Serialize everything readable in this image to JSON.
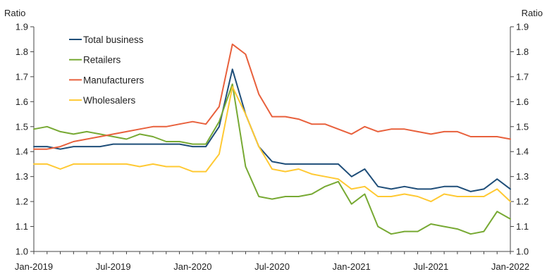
{
  "chart_data": {
    "type": "line",
    "title": "",
    "ylabel_left": "Ratio",
    "ylabel_right": "Ratio",
    "ylim": [
      1.0,
      1.9
    ],
    "yticks": [
      "1.0",
      "1.1",
      "1.2",
      "1.3",
      "1.4",
      "1.5",
      "1.6",
      "1.7",
      "1.8",
      "1.9"
    ],
    "x": [
      "2019-01",
      "2019-02",
      "2019-03",
      "2019-04",
      "2019-05",
      "2019-06",
      "2019-07",
      "2019-08",
      "2019-09",
      "2019-10",
      "2019-11",
      "2019-12",
      "2020-01",
      "2020-02",
      "2020-03",
      "2020-04",
      "2020-05",
      "2020-06",
      "2020-07",
      "2020-08",
      "2020-09",
      "2020-10",
      "2020-11",
      "2020-12",
      "2021-01",
      "2021-02",
      "2021-03",
      "2021-04",
      "2021-05",
      "2021-06",
      "2021-07",
      "2021-08",
      "2021-09",
      "2021-10",
      "2021-11",
      "2021-12",
      "2022-01"
    ],
    "xtick_labels": [
      {
        "x": "2019-01",
        "label": "Jan-2019"
      },
      {
        "x": "2019-07",
        "label": "Jul-2019"
      },
      {
        "x": "2020-01",
        "label": "Jan-2020"
      },
      {
        "x": "2020-07",
        "label": "Jul-2020"
      },
      {
        "x": "2021-01",
        "label": "Jan-2021"
      },
      {
        "x": "2021-07",
        "label": "Jul-2021"
      },
      {
        "x": "2022-01",
        "label": "Jan-2022"
      }
    ],
    "legend_position": "top-left",
    "grid": false,
    "series": [
      {
        "name": "Total business",
        "color": "#1f4e79",
        "values": [
          1.42,
          1.42,
          1.41,
          1.42,
          1.42,
          1.42,
          1.43,
          1.43,
          1.43,
          1.43,
          1.43,
          1.43,
          1.42,
          1.42,
          1.5,
          1.73,
          1.55,
          1.42,
          1.36,
          1.35,
          1.35,
          1.35,
          1.35,
          1.35,
          1.3,
          1.33,
          1.26,
          1.25,
          1.26,
          1.25,
          1.25,
          1.26,
          1.26,
          1.24,
          1.25,
          1.29,
          1.25
        ]
      },
      {
        "name": "Retailers",
        "color": "#77a933",
        "values": [
          1.49,
          1.5,
          1.48,
          1.47,
          1.48,
          1.47,
          1.46,
          1.45,
          1.47,
          1.46,
          1.44,
          1.44,
          1.43,
          1.43,
          1.52,
          1.67,
          1.34,
          1.22,
          1.21,
          1.22,
          1.22,
          1.23,
          1.26,
          1.28,
          1.19,
          1.23,
          1.1,
          1.07,
          1.08,
          1.08,
          1.11,
          1.1,
          1.09,
          1.07,
          1.08,
          1.16,
          1.13
        ]
      },
      {
        "name": "Manufacturers",
        "color": "#e8603c",
        "values": [
          1.41,
          1.41,
          1.42,
          1.44,
          1.45,
          1.46,
          1.47,
          1.48,
          1.49,
          1.5,
          1.5,
          1.51,
          1.52,
          1.51,
          1.58,
          1.83,
          1.79,
          1.63,
          1.54,
          1.54,
          1.53,
          1.51,
          1.51,
          1.49,
          1.47,
          1.5,
          1.48,
          1.49,
          1.49,
          1.48,
          1.47,
          1.48,
          1.48,
          1.46,
          1.46,
          1.46,
          1.45
        ]
      },
      {
        "name": "Wholesalers",
        "color": "#ffc933",
        "values": [
          1.35,
          1.35,
          1.33,
          1.35,
          1.35,
          1.35,
          1.35,
          1.35,
          1.34,
          1.35,
          1.34,
          1.34,
          1.32,
          1.32,
          1.39,
          1.66,
          1.55,
          1.42,
          1.33,
          1.32,
          1.33,
          1.31,
          1.3,
          1.29,
          1.25,
          1.26,
          1.22,
          1.22,
          1.23,
          1.22,
          1.2,
          1.23,
          1.22,
          1.22,
          1.22,
          1.25,
          1.2
        ]
      }
    ]
  }
}
